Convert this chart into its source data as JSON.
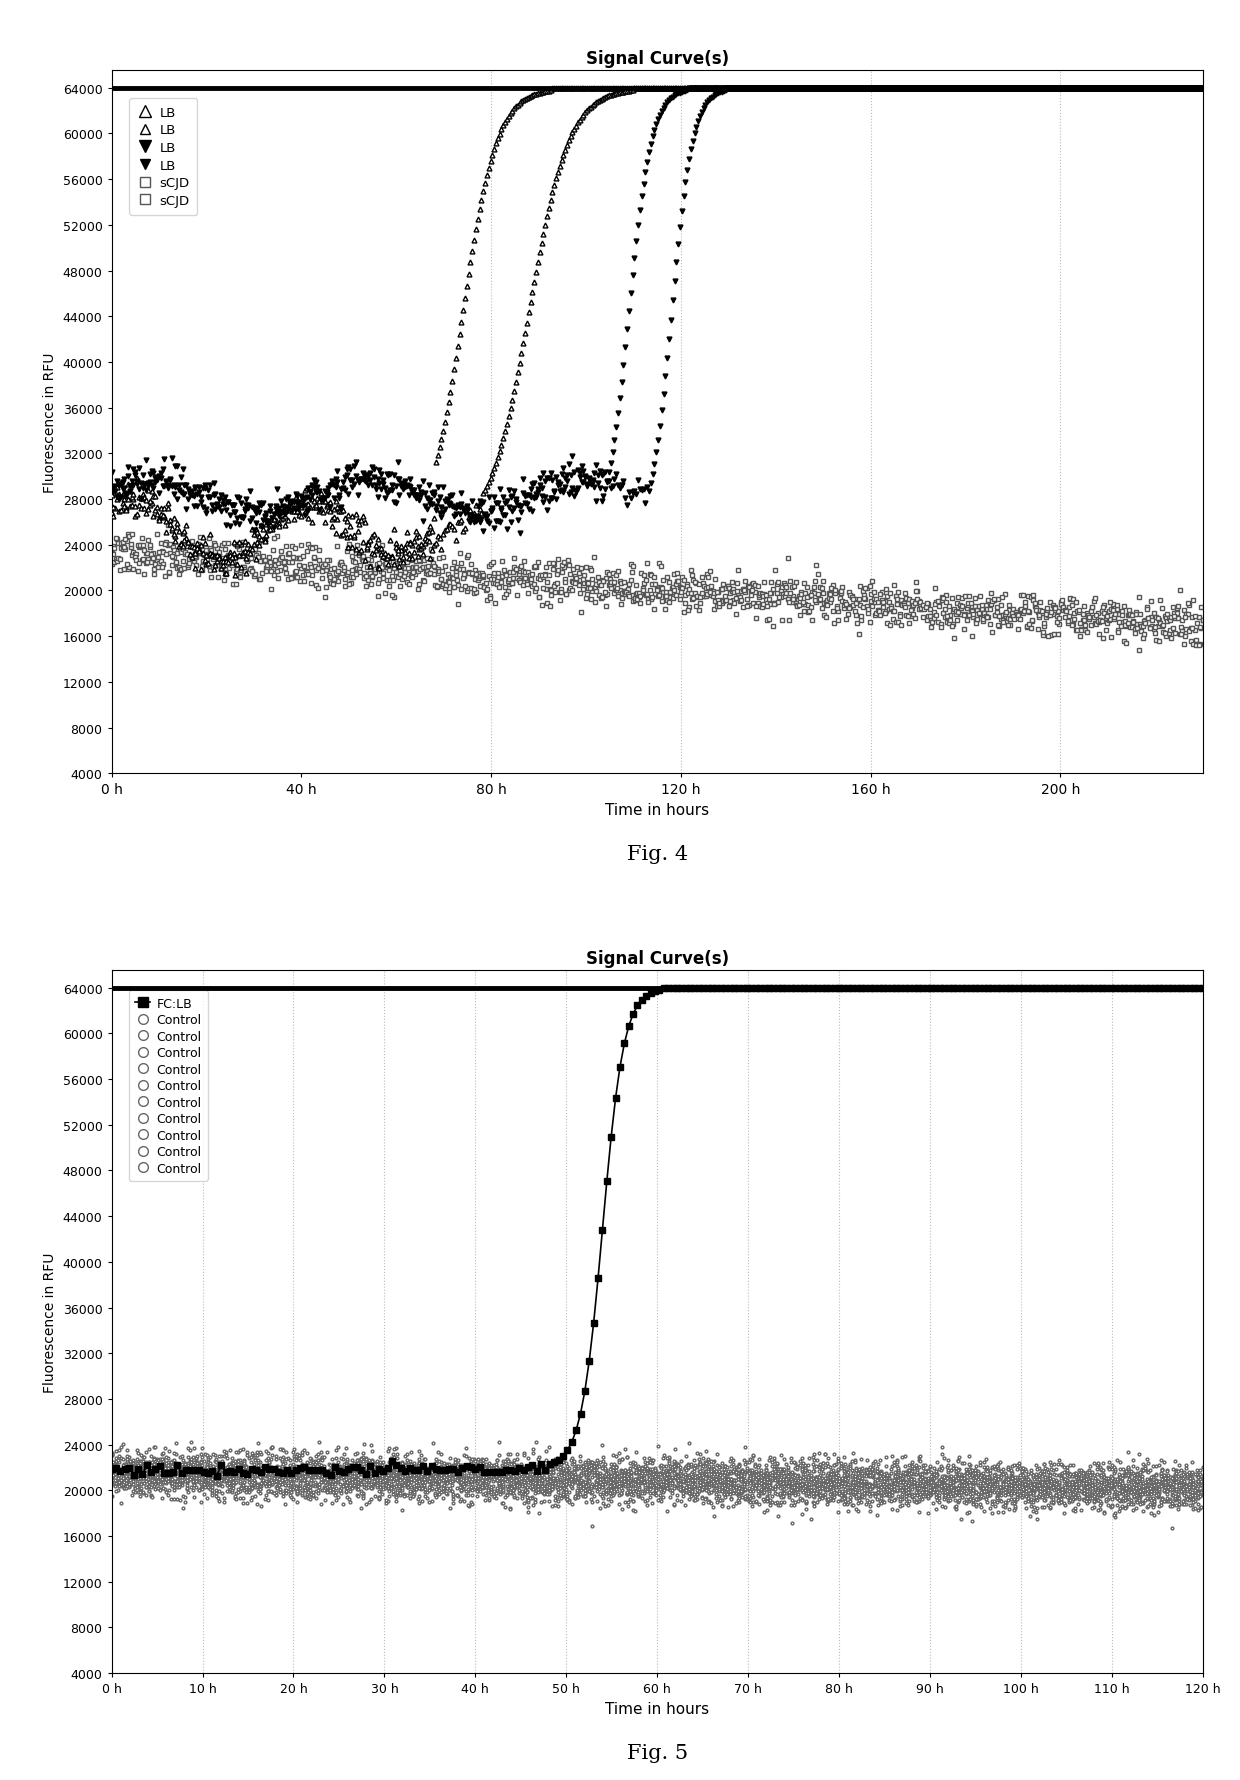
{
  "fig4": {
    "title": "Signal Curve(s)",
    "xlabel": "Time in hours",
    "ylabel": "Fluorescence in RFU",
    "xlim": [
      0,
      230
    ],
    "ylim": [
      4000,
      65535
    ],
    "yticks": [
      4000,
      8000,
      12000,
      16000,
      20000,
      24000,
      28000,
      32000,
      36000,
      40000,
      44000,
      48000,
      52000,
      56000,
      60000,
      64000
    ],
    "xticks": [
      0,
      40,
      80,
      120,
      160,
      200
    ],
    "xtick_labels": [
      "0 h",
      "40 h",
      "80 h",
      "120 h",
      "160 h",
      "200 h"
    ],
    "legend_labels": [
      "LB",
      "LB",
      "LB",
      "LB",
      "sCJD",
      "sCJD"
    ],
    "saturation_line": 64000,
    "vgrid_lines": [
      80,
      120,
      160,
      200
    ]
  },
  "fig5": {
    "title": "Signal Curve(s)",
    "xlabel": "Time in hours",
    "ylabel": "Fluorescence in RFU",
    "xlim": [
      0,
      120
    ],
    "ylim": [
      4000,
      65535
    ],
    "yticks": [
      4000,
      8000,
      12000,
      16000,
      20000,
      24000,
      28000,
      32000,
      36000,
      40000,
      44000,
      48000,
      52000,
      56000,
      60000,
      64000
    ],
    "xticks": [
      0,
      10,
      20,
      30,
      40,
      50,
      60,
      70,
      80,
      90,
      100,
      110,
      120
    ],
    "xtick_labels": [
      "0 h",
      "10 h",
      "20 h",
      "30 h",
      "40 h",
      "50 h",
      "60 h",
      "70 h",
      "80 h",
      "90 h",
      "100 h",
      "110 h",
      "120 h"
    ],
    "legend_labels": [
      "FC:LB",
      "Control",
      "Control",
      "Control",
      "Control",
      "Control",
      "Control",
      "Control",
      "Control",
      "Control",
      "Control"
    ],
    "saturation_line": 64000,
    "vgrid_lines": [
      10,
      20,
      30,
      40,
      50,
      60,
      70,
      80,
      90,
      100,
      110,
      120
    ]
  },
  "background_color": "#ffffff",
  "grid_color": "#bbbbbb",
  "text_color": "#000000"
}
